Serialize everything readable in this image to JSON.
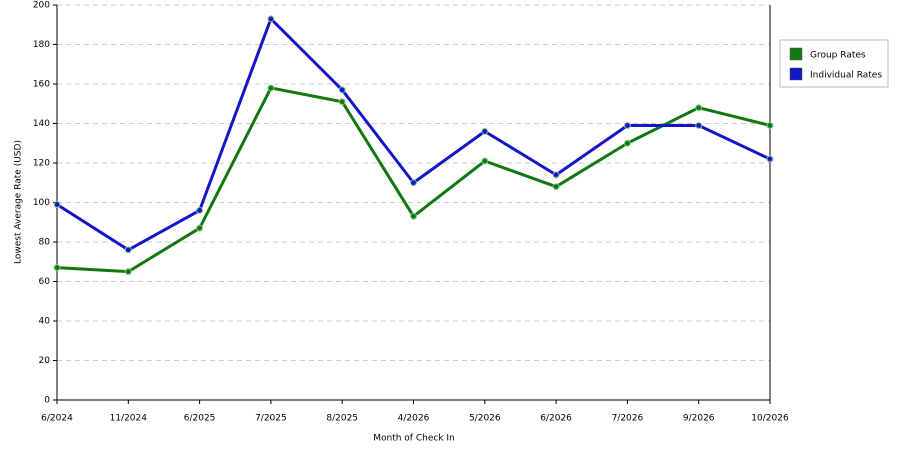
{
  "chart_data": {
    "type": "line",
    "x_label": "Month of Check In",
    "y_label": "Lowest Average Rate (USD)",
    "categories": [
      "6/2024",
      "11/2024",
      "6/2025",
      "7/2025",
      "8/2025",
      "4/2026",
      "5/2026",
      "6/2026",
      "7/2026",
      "9/2026",
      "10/2026"
    ],
    "series": [
      {
        "name": "Group Rates",
        "color": "#117711",
        "values": [
          67,
          65,
          87,
          158,
          151,
          93,
          121,
          108,
          130,
          148,
          139
        ]
      },
      {
        "name": "Individual Rates",
        "color": "#1515c8",
        "values": [
          99,
          76,
          96,
          193,
          157,
          110,
          136,
          114,
          139,
          139,
          122
        ]
      }
    ],
    "ylim": [
      0,
      200
    ],
    "yticks": [
      0,
      20,
      40,
      60,
      80,
      100,
      120,
      140,
      160,
      180,
      200
    ],
    "grid": true,
    "legend": "right"
  }
}
